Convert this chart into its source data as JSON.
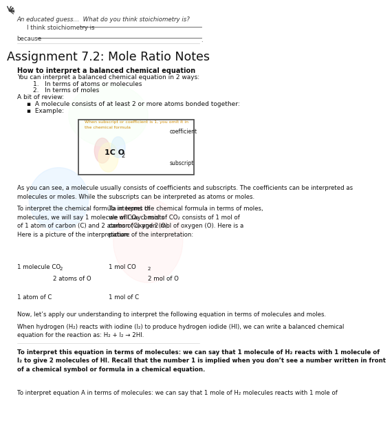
{
  "title": "Assignment 7.2: Mole Ratio Notes",
  "bg_color": "#ffffff",
  "text_color": "#000000",
  "header_italic": "An educated guess…  What do you think stoichiometry is?",
  "line1_label": "I think stoichiometry is",
  "line2_label": "because",
  "section1_bold": "How to interpret a balanced chemical equation",
  "section1_text": "You can interpret a balanced chemical equation in 2 ways:",
  "list1": [
    "In terms of atoms or molecules",
    "In terms of moles"
  ],
  "review_header": "A bit of review:",
  "bullet1": "A molecule consists of at least 2 or more atoms bonded together:",
  "bullet2": "Example:",
  "as_you": "As you can see, a molecule usually consists of coefficients and subscripts. The coefficients can be interpreted as\nmolecules or moles. While the subscripts can be interpreted as atoms or moles.",
  "left_col": "To interpret the chemical formula in terms of\nmolecules, we will say 1 molecule of CO₂ consists\nof 1 atom of carbon (C) and 2 atoms of oxygen (O).\nHere is a picture of the interpretation:",
  "right_col": "To interpret the chemical formula in terms of moles,\nwe will say 1 mol of CO₂ consists of 1 mol of\ncarbon (C) and 2 mol of oxygen (O). Here is a\npicture of the interpretation:",
  "now_text": "Now, let’s apply our understanding to interpret the following equation in terms of molecules and moles.",
  "when_text": "When hydrogen (H₂) reacts with iodine (I₂) to produce hydrogen iodide (HI), we can write a balanced chemical\nequation for the reaction as: H₂ + I₂ → 2HI.",
  "bold_bottom": "To interpret this equation in terms of molecules: we can say that 1 molecule of H₂ reacts with 1 molecule of\nI₂ to give 2 molecules of HI. Recall that the number 1 is implied when you don’t see a number written in front\nof a chemical symbol or formula in a chemical equation.",
  "last_partial": "To interpret equation A in terms of molecules: we can say that 1 mole of H₂ molecules reacts with 1 mole of"
}
